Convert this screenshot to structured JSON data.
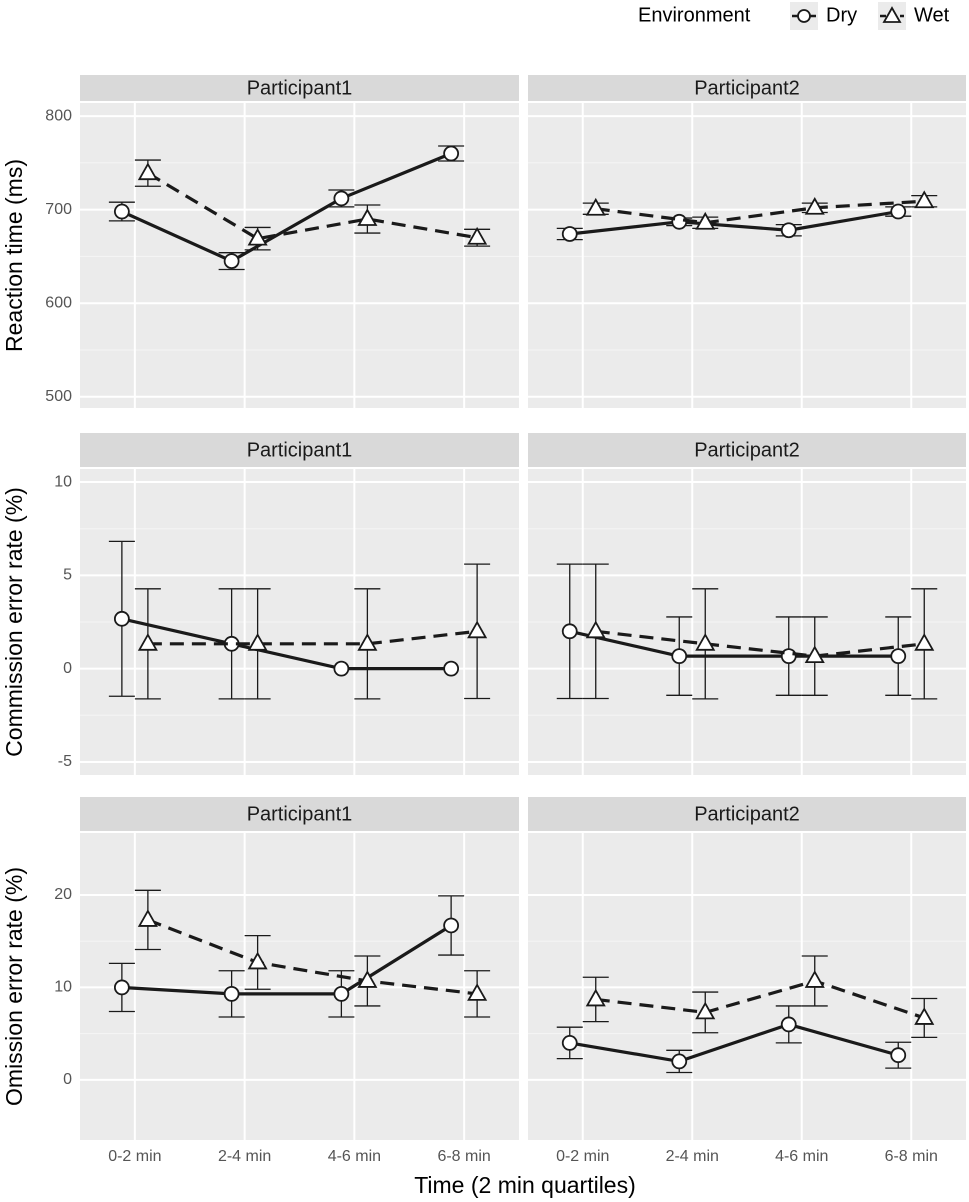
{
  "chart_data": {
    "type": "line",
    "legend_title": "Environment",
    "xlabel": "Time (2 min quartiles)",
    "categories": [
      "0-2 min",
      "2-4 min",
      "4-6 min",
      "6-8 min"
    ],
    "series": [
      {
        "name": "Dry",
        "color": "#1a1a1a",
        "marker": "circle",
        "dash": "solid"
      },
      {
        "name": "Wet",
        "color": "#1a1a1a",
        "marker": "triangle",
        "dash": "dashed"
      }
    ],
    "grid": true,
    "rows": [
      {
        "ylabel": "Reaction time (ms)",
        "ylim": [
          488,
          814
        ],
        "yticks": [
          500,
          600,
          700,
          800
        ],
        "panels": [
          {
            "title": "Participant1",
            "series": [
              {
                "values": [
                  698,
                  645,
                  712,
                  760
                ],
                "errors": [
                  10,
                  9,
                  9,
                  8
                ]
              },
              {
                "values": [
                  739,
                  669,
                  690,
                  670
                ],
                "errors": [
                  14,
                  12,
                  15,
                  9
                ]
              }
            ]
          },
          {
            "title": "Participant2",
            "series": [
              {
                "values": [
                  674,
                  687,
                  678,
                  698
                ],
                "errors": [
                  6,
                  4,
                  6,
                  5
                ]
              },
              {
                "values": [
                  701,
                  686,
                  702,
                  709
                ],
                "errors": [
                  6,
                  6,
                  5,
                  6
                ]
              }
            ]
          }
        ]
      },
      {
        "ylabel": "Commission error rate (%)",
        "ylim": [
          -5.7,
          10.7
        ],
        "yticks": [
          -5,
          0,
          5,
          10
        ],
        "panels": [
          {
            "title": "Participant1",
            "series": [
              {
                "values": [
                  2.67,
                  1.33,
                  0,
                  0
                ],
                "errors": [
                  4.15,
                  2.95,
                  0,
                  0
                ]
              },
              {
                "values": [
                  1.33,
                  1.33,
                  1.33,
                  2.0
                ],
                "errors": [
                  2.95,
                  2.95,
                  2.95,
                  3.6
                ]
              }
            ]
          },
          {
            "title": "Participant2",
            "series": [
              {
                "values": [
                  2.0,
                  0.67,
                  0.67,
                  0.67
                ],
                "errors": [
                  3.6,
                  2.1,
                  2.1,
                  2.1
                ]
              },
              {
                "values": [
                  2.0,
                  1.33,
                  0.67,
                  1.33
                ],
                "errors": [
                  3.6,
                  2.95,
                  2.1,
                  2.95
                ]
              }
            ]
          }
        ]
      },
      {
        "ylabel": "Omission error rate (%)",
        "ylim": [
          -6.5,
          26.7
        ],
        "yticks": [
          0,
          10,
          20
        ],
        "panels": [
          {
            "title": "Participant1",
            "series": [
              {
                "values": [
                  10,
                  9.3,
                  9.3,
                  16.7
                ],
                "errors": [
                  2.6,
                  2.5,
                  2.5,
                  3.2
                ]
              },
              {
                "values": [
                  17.3,
                  12.7,
                  10.7,
                  9.3
                ],
                "errors": [
                  3.2,
                  2.9,
                  2.7,
                  2.5
                ]
              }
            ]
          },
          {
            "title": "Participant2",
            "series": [
              {
                "values": [
                  4.0,
                  2.0,
                  6.0,
                  2.67
                ],
                "errors": [
                  1.7,
                  1.2,
                  2.0,
                  1.4
                ]
              },
              {
                "values": [
                  8.7,
                  7.3,
                  10.7,
                  6.7
                ],
                "errors": [
                  2.4,
                  2.2,
                  2.7,
                  2.1
                ]
              }
            ]
          }
        ]
      }
    ]
  }
}
